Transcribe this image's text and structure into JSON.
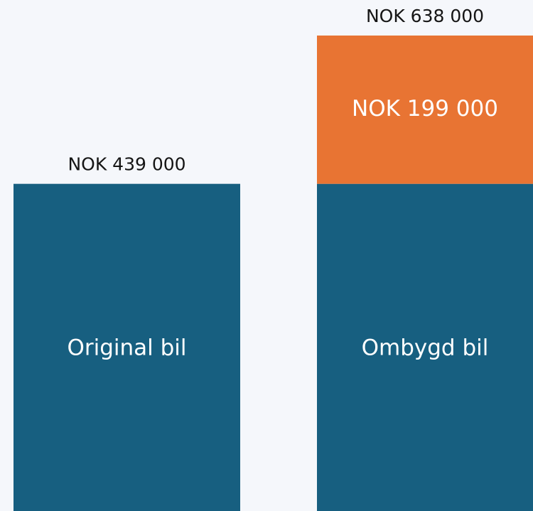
{
  "chart_data": {
    "type": "stacked_bar",
    "categories": [
      "Original bil",
      "Ombygd bil"
    ],
    "total_labels": [
      "NOK 439 000",
      "NOK 638 000"
    ],
    "series": [
      {
        "color": "#175f80",
        "values": [
          439000,
          439000
        ]
      },
      {
        "color": "#e87433",
        "values": [
          null,
          199000
        ],
        "value_labels": [
          null,
          "NOK 199 000"
        ]
      }
    ]
  }
}
